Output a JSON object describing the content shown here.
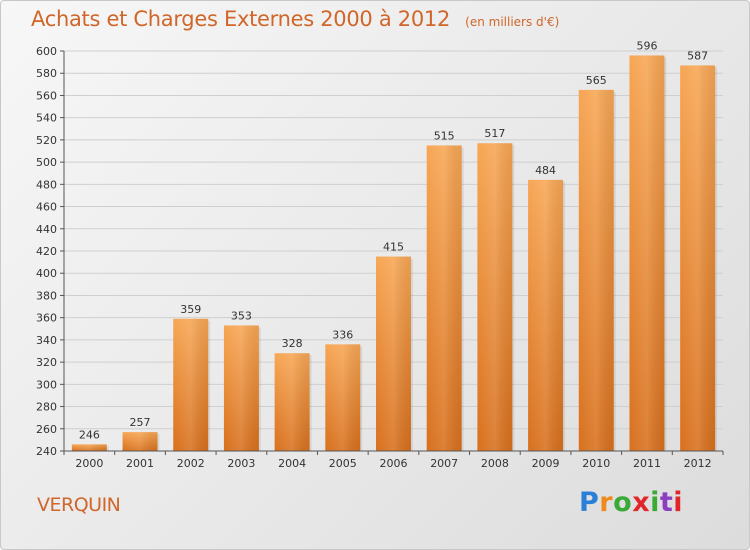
{
  "header": {
    "title": "Achats et Charges Externes 2000 à 2012",
    "subtitle": "(en milliers d'€)"
  },
  "footer": {
    "commune": "VERQUIN",
    "logo_text": "Proxiti"
  },
  "colors": {
    "accent": "#d0662a",
    "bar_light": "#f6a452",
    "bar_dark": "#d96f1c",
    "grid": "#cfcfcf"
  },
  "chart_data": {
    "type": "bar",
    "title": "Achats et Charges Externes 2000 à 2012",
    "subtitle": "(en milliers d'€)",
    "xlabel": "",
    "ylabel": "",
    "categories": [
      "2000",
      "2001",
      "2002",
      "2003",
      "2004",
      "2005",
      "2006",
      "2007",
      "2008",
      "2009",
      "2010",
      "2011",
      "2012"
    ],
    "values": [
      246,
      257,
      359,
      353,
      328,
      336,
      415,
      515,
      517,
      484,
      565,
      596,
      587
    ],
    "ylim": [
      240,
      600
    ],
    "yticks": [
      240,
      260,
      280,
      300,
      320,
      340,
      360,
      380,
      400,
      420,
      440,
      460,
      480,
      500,
      520,
      540,
      560,
      580,
      600
    ],
    "grid": true,
    "legend": "none"
  }
}
